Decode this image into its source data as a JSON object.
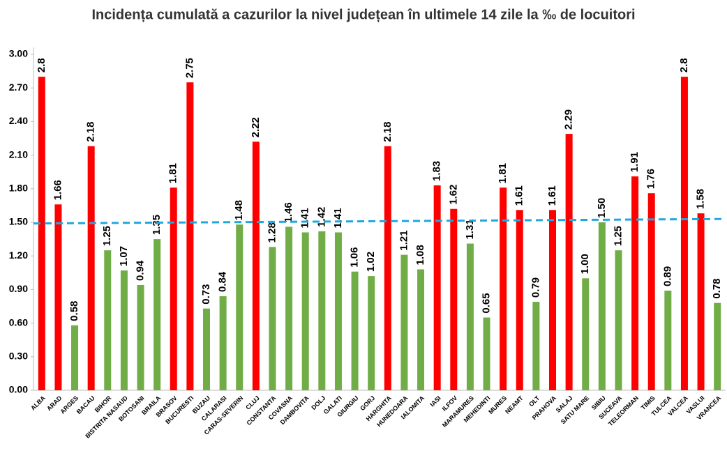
{
  "chart_data": {
    "type": "bar",
    "title": "Incidența cumulată a cazurilor la nivel județean în ultimele 14 zile la ‰ de locuitori",
    "categories": [
      "ALBA",
      "ARAD",
      "ARGES",
      "BACAU",
      "BIHOR",
      "BISTRITA NASAUD",
      "BOTOSANI",
      "BRAILA",
      "BRASOV",
      "BUCURESTI",
      "BUZAU",
      "CALARASI",
      "CARAS-SEVERIN",
      "CLUJ",
      "CONSTANTA",
      "COVASNA",
      "DAMBOVITA",
      "DOLJ",
      "GALATI",
      "GIURGIU",
      "GORJ",
      "HARGHITA",
      "HUNEDOARA",
      "IALOMITA",
      "IASI",
      "ILFOV",
      "MARAMURES",
      "MEHEDINTI",
      "MURES",
      "NEAMT",
      "OLT",
      "PRAHOVA",
      "SALAJ",
      "SATU MARE",
      "SIBIU",
      "SUCEAVA",
      "TELEORMAN",
      "TIMIS",
      "TULCEA",
      "VALCEA",
      "VASLUI",
      "VRANCEA"
    ],
    "values": [
      2.8,
      1.66,
      0.58,
      2.18,
      1.25,
      1.07,
      0.94,
      1.35,
      1.81,
      2.75,
      0.73,
      0.84,
      1.48,
      2.22,
      1.28,
      1.46,
      1.41,
      1.42,
      1.41,
      1.06,
      1.02,
      2.18,
      1.21,
      1.08,
      1.83,
      1.62,
      1.31,
      0.65,
      1.81,
      1.61,
      0.79,
      1.61,
      2.29,
      1.0,
      1.5,
      1.25,
      1.91,
      1.76,
      0.89,
      2.8,
      1.58,
      0.78
    ],
    "value_labels": [
      "2.8",
      "1.66",
      "0.58",
      "2.18",
      "1.25",
      "1.07",
      "0.94",
      "1.35",
      "1.81",
      "2.75",
      "0.73",
      "0.84",
      "1.48",
      "2.22",
      "1.28",
      "1.46",
      "1.41",
      "1.42",
      "1.41",
      "1.06",
      "1.02",
      "2.18",
      "1.21",
      "1.08",
      "1.83",
      "1.62",
      "1.31",
      "0.65",
      "1.81",
      "1.61",
      "0.79",
      "1.61",
      "2.29",
      "1.00",
      "1.50",
      "1.25",
      "1.91",
      "1.76",
      "0.89",
      "2.8",
      "1.58",
      "0.78"
    ],
    "colors": [
      "#ff0000",
      "#ff0000",
      "#70ad47",
      "#ff0000",
      "#70ad47",
      "#70ad47",
      "#70ad47",
      "#70ad47",
      "#ff0000",
      "#ff0000",
      "#70ad47",
      "#70ad47",
      "#70ad47",
      "#ff0000",
      "#70ad47",
      "#70ad47",
      "#70ad47",
      "#70ad47",
      "#70ad47",
      "#70ad47",
      "#70ad47",
      "#ff0000",
      "#70ad47",
      "#70ad47",
      "#ff0000",
      "#ff0000",
      "#70ad47",
      "#70ad47",
      "#ff0000",
      "#ff0000",
      "#70ad47",
      "#ff0000",
      "#ff0000",
      "#70ad47",
      "#70ad47",
      "#70ad47",
      "#ff0000",
      "#ff0000",
      "#70ad47",
      "#ff0000",
      "#ff0000",
      "#70ad47"
    ],
    "ylim": [
      0,
      3
    ],
    "yticks": [
      {
        "value": 0,
        "label": "0.00"
      },
      {
        "value": 0.3,
        "label": "0.30"
      },
      {
        "value": 0.6,
        "label": "0.60"
      },
      {
        "value": 0.9,
        "label": "0.90"
      },
      {
        "value": 1.2,
        "label": "1.20"
      },
      {
        "value": 1.5,
        "label": "1.50"
      },
      {
        "value": 1.8,
        "label": "1.80"
      },
      {
        "value": 2.1,
        "label": "2.10"
      },
      {
        "value": 2.4,
        "label": "2.40"
      },
      {
        "value": 2.7,
        "label": "2.70"
      },
      {
        "value": 3,
        "label": "3.00"
      }
    ],
    "reference_line": {
      "values": [
        1.49,
        1.53
      ],
      "color": "#1ea8e0"
    },
    "grid": false
  }
}
